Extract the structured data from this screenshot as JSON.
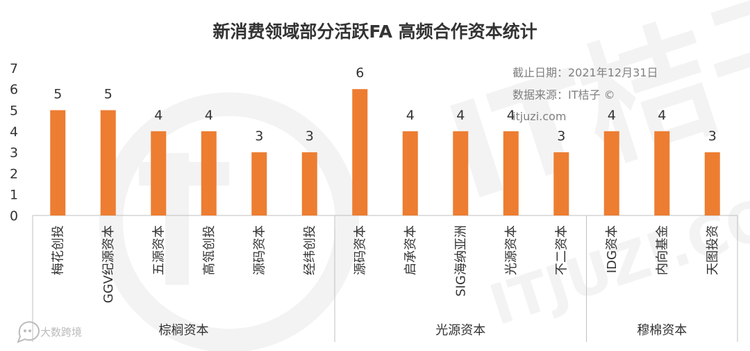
{
  "chart_data": {
    "type": "bar",
    "title": "新消费领域部分活跃FA 高频合作资本统计",
    "ylim": [
      0,
      7
    ],
    "yticks": [
      0,
      1,
      2,
      3,
      4,
      5,
      6,
      7
    ],
    "bar_color": "#ED7D31",
    "groups": [
      {
        "name": "棕榈资本",
        "categories": [
          "梅花创投",
          "GGV纪源资本",
          "五源资本",
          "高瓴创投",
          "源码资本",
          "经纬创投"
        ],
        "values": [
          5,
          5,
          4,
          4,
          3,
          3
        ]
      },
      {
        "name": "光源资本",
        "categories": [
          "源码资本",
          "启承资本",
          "SIG海纳亚洲",
          "光源资本",
          "不二资本"
        ],
        "values": [
          6,
          4,
          4,
          4,
          3
        ]
      },
      {
        "name": "穆棉资本",
        "categories": [
          "IDG资本",
          "内向基金",
          "天图投资"
        ],
        "values": [
          4,
          4,
          3
        ]
      }
    ]
  },
  "notes": {
    "line1": "截止日期：2021年12月31日",
    "line2": "数据来源：IT桔子 ©",
    "line3": "itjuzi.com"
  },
  "watermark": {
    "text": "大数跨境",
    "logo_text": "IT桔子",
    "logo_sub": "ITJUZI.COM",
    "icon": "chat-bubble-icon"
  }
}
